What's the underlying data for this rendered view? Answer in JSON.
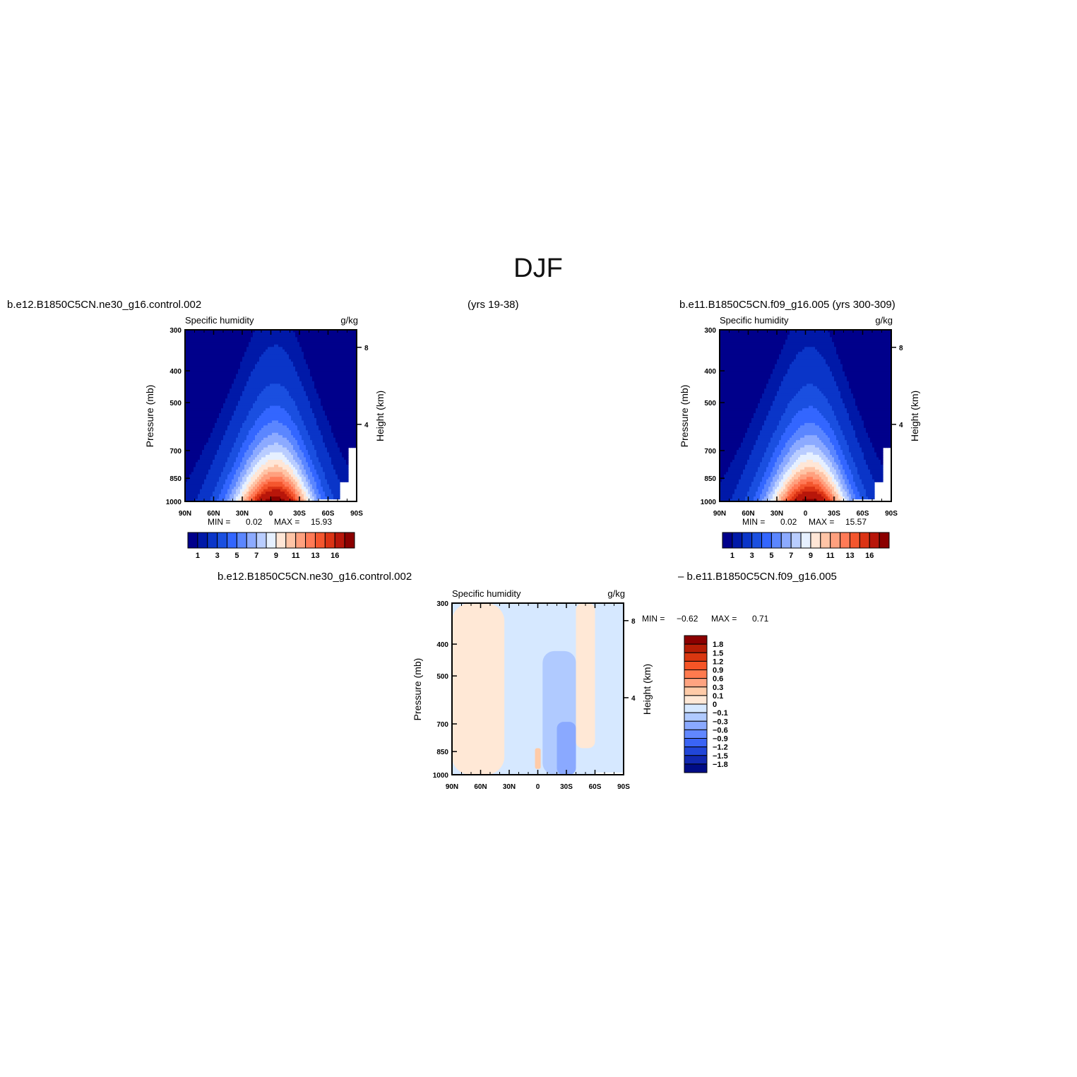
{
  "figure": {
    "title": "DJF",
    "panels": {
      "left": {
        "case_label": "b.e12.B1850C5CN.ne30_g16.control.002",
        "years_label": "(yrs 19-38)"
      },
      "right": {
        "case_label": "b.e11.B1850C5CN.f09_g16.005 (yrs 300-309)"
      },
      "diff": {
        "case_label_a": "b.e12.B1850C5CN.ne30_g16.control.002",
        "case_label_b": "– b.e11.B1850C5CN.f09_g16.005"
      }
    }
  },
  "chart_data": [
    {
      "id": "left",
      "type": "heatmap",
      "title": "Specific humidity",
      "units": "g/kg",
      "xlabel": "",
      "ylabel": "Pressure (mb)",
      "y2label": "Height (km)",
      "x_ticks": [
        "90N",
        "60N",
        "30N",
        "0",
        "30S",
        "60S",
        "90S"
      ],
      "x_tick_values": [
        90,
        60,
        30,
        0,
        -30,
        -60,
        -90
      ],
      "y_ticks": [
        "300",
        "400",
        "500",
        "700",
        "850",
        "1000"
      ],
      "y_tick_values": [
        300,
        400,
        500,
        700,
        850,
        1000
      ],
      "y_scale": "log",
      "y2_ticks": [
        "4",
        "8"
      ],
      "y2_tick_values": [
        4,
        8
      ],
      "min_label": "MIN =",
      "min": "0.02",
      "max_label": "MAX =",
      "max": "15.93",
      "field": {
        "peak_lat": -5,
        "peak_value": 15.93,
        "floor_value": 0.02,
        "missing_below": [
          {
            "lat_from": 90,
            "lat_to": 68,
            "p_top": 1000
          },
          {
            "lat_from": -50,
            "lat_to": -90,
            "p_top": 990
          },
          {
            "lat_from": -72,
            "lat_to": -90,
            "p_top": 875
          },
          {
            "lat_from": -82,
            "lat_to": -90,
            "p_top": 690
          }
        ]
      },
      "colorbar": {
        "orientation": "horizontal",
        "labels": [
          "1",
          "3",
          "5",
          "7",
          "9",
          "11",
          "13",
          "16"
        ],
        "levels": [
          0.5,
          1,
          2,
          3,
          4,
          5,
          6,
          7,
          8,
          9,
          10,
          11,
          12,
          13,
          14,
          16
        ]
      }
    },
    {
      "id": "right",
      "type": "heatmap",
      "title": "Specific humidity",
      "units": "g/kg",
      "xlabel": "",
      "ylabel": "Pressure (mb)",
      "y2label": "Height (km)",
      "x_ticks": [
        "90N",
        "60N",
        "30N",
        "0",
        "30S",
        "60S",
        "90S"
      ],
      "x_tick_values": [
        90,
        60,
        30,
        0,
        -30,
        -60,
        -90
      ],
      "y_ticks": [
        "300",
        "400",
        "500",
        "700",
        "850",
        "1000"
      ],
      "y_tick_values": [
        300,
        400,
        500,
        700,
        850,
        1000
      ],
      "y_scale": "log",
      "y2_ticks": [
        "4",
        "8"
      ],
      "y2_tick_values": [
        4,
        8
      ],
      "min_label": "MIN =",
      "min": "0.02",
      "max_label": "MAX =",
      "max": "15.57",
      "field": {
        "peak_lat": -5,
        "peak_value": 15.57,
        "floor_value": 0.02,
        "missing_below": [
          {
            "lat_from": 90,
            "lat_to": 68,
            "p_top": 1000
          },
          {
            "lat_from": -50,
            "lat_to": -90,
            "p_top": 990
          },
          {
            "lat_from": -72,
            "lat_to": -90,
            "p_top": 875
          },
          {
            "lat_from": -82,
            "lat_to": -90,
            "p_top": 690
          }
        ]
      },
      "colorbar": {
        "orientation": "horizontal",
        "labels": [
          "1",
          "3",
          "5",
          "7",
          "9",
          "11",
          "13",
          "16"
        ],
        "levels": [
          0.5,
          1,
          2,
          3,
          4,
          5,
          6,
          7,
          8,
          9,
          10,
          11,
          12,
          13,
          14,
          16
        ]
      }
    },
    {
      "id": "diff",
      "type": "heatmap",
      "title": "Specific humidity",
      "units": "g/kg",
      "xlabel": "",
      "ylabel": "Pressure (mb)",
      "y2label": "Height (km)",
      "x_ticks": [
        "90N",
        "60N",
        "30N",
        "0",
        "30S",
        "60S",
        "90S"
      ],
      "x_tick_values": [
        90,
        60,
        30,
        0,
        -30,
        -60,
        -90
      ],
      "y_ticks": [
        "300",
        "400",
        "500",
        "700",
        "850",
        "1000"
      ],
      "y_tick_values": [
        300,
        400,
        500,
        700,
        850,
        1000
      ],
      "y_scale": "log",
      "y2_ticks": [
        "4",
        "8"
      ],
      "y2_tick_values": [
        4,
        8
      ],
      "min_label": "MIN =",
      "min": "−0.62",
      "max_label": "MAX =",
      "max": "0.71",
      "regions": [
        {
          "band": "0 to 0.1",
          "lat": [
            90,
            35
          ],
          "p": [
            300,
            1000
          ]
        },
        {
          "band": "0 to -0.1",
          "lat": [
            35,
            0
          ],
          "p": [
            300,
            1000
          ]
        },
        {
          "band": "-0.1 to -0.3",
          "lat": [
            -5,
            -40
          ],
          "p": [
            420,
            1000
          ]
        },
        {
          "band": "-0.3 to -0.6",
          "lat": [
            -20,
            -40
          ],
          "p": [
            690,
            1000
          ]
        },
        {
          "band": "0.1 to 0.3",
          "lat": [
            3,
            -3
          ],
          "p": [
            830,
            960
          ]
        },
        {
          "band": "0 to 0.1",
          "lat": [
            -40,
            -60
          ],
          "p": [
            300,
            830
          ]
        },
        {
          "band": "0 to -0.1",
          "lat": [
            -60,
            -90
          ],
          "p": [
            300,
            1000
          ]
        }
      ],
      "colorbar": {
        "orientation": "vertical",
        "labels": [
          "1.8",
          "1.5",
          "1.2",
          "0.9",
          "0.6",
          "0.3",
          "0.1",
          "0",
          "−0.1",
          "−0.3",
          "−0.6",
          "−0.9",
          "−1.2",
          "−1.5",
          "−1.8"
        ],
        "levels": [
          1.8,
          1.5,
          1.2,
          0.9,
          0.6,
          0.3,
          0.1,
          0,
          -0.1,
          -0.3,
          -0.6,
          -0.9,
          -1.2,
          -1.5,
          -1.8
        ]
      }
    }
  ],
  "palettes": {
    "field": [
      "#00008b",
      "#0019a8",
      "#0a35c8",
      "#1a4fe0",
      "#3366ff",
      "#5b86ff",
      "#8caaff",
      "#b9cdff",
      "#e6f0ff",
      "#ffe6d6",
      "#ffc4a6",
      "#ffa07e",
      "#ff7a56",
      "#f4562e",
      "#db3314",
      "#b8160a",
      "#8b0000"
    ],
    "diff_pos": [
      "#ffe8d6",
      "#ffcba8",
      "#ffa380",
      "#ff7a4e",
      "#f55426",
      "#d93710",
      "#b51d05",
      "#8b0000"
    ],
    "diff_neg": [
      "#d6e8ff",
      "#b0caff",
      "#8aa9ff",
      "#6187ff",
      "#3a64f5",
      "#2146d8",
      "#1128b0",
      "#000c86"
    ]
  }
}
